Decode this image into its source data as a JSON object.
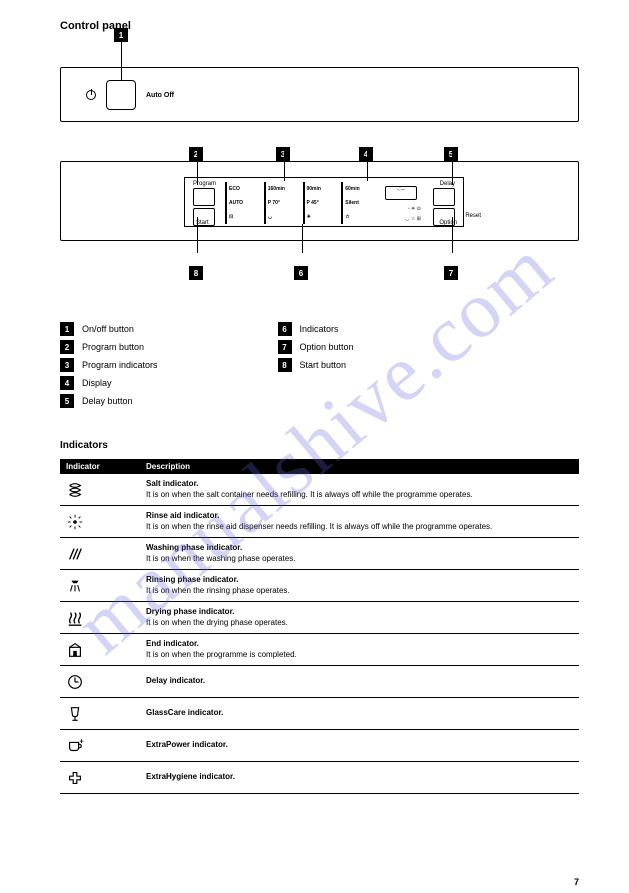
{
  "watermark": "manualshive.com",
  "page_number": "7",
  "heading": "Control panel",
  "panel1": {
    "auto_off": "Auto Off"
  },
  "markers": {
    "m1": "1",
    "m2": "2",
    "m3": "3",
    "m4": "4",
    "m5": "5",
    "m6": "6",
    "m7": "7",
    "m8": "8"
  },
  "panel2": {
    "program_lbl": "Program",
    "start_lbl": "Start",
    "delay_lbl": "Delay",
    "option_lbl": "Option",
    "reset_lbl": "Reset",
    "cells": [
      "ECO",
      "160min",
      "90min",
      "60min",
      "30min",
      "AUTO",
      "P 70°",
      "P 45°",
      "Glass",
      "Silent",
      "",
      "",
      "",
      "",
      ""
    ]
  },
  "legend_left": [
    {
      "n": "1",
      "t": "On/off button"
    },
    {
      "n": "2",
      "t": "Program button"
    },
    {
      "n": "3",
      "t": "Program indicators"
    },
    {
      "n": "4",
      "t": "Display"
    },
    {
      "n": "5",
      "t": "Delay button"
    }
  ],
  "legend_right": [
    {
      "n": "6",
      "t": "Indicators"
    },
    {
      "n": "7",
      "t": "Option button"
    },
    {
      "n": "8",
      "t": "Start button"
    }
  ],
  "indicators_title": "Indicators",
  "table_head": [
    "Indicator",
    "Description"
  ],
  "rows": [
    {
      "icon": "salt",
      "title": "Salt indicator.",
      "desc": "It is on when the salt container needs refilling. It is always off while the programme operates."
    },
    {
      "icon": "rinse",
      "title": "Rinse aid indicator.",
      "desc": "It is on when the rinse aid dispenser needs refilling. It is always off while the programme operates."
    },
    {
      "icon": "wash",
      "title": "Washing phase indicator.",
      "desc": "It is on when the washing phase operates."
    },
    {
      "icon": "rinsephase",
      "title": "Rinsing phase indicator.",
      "desc": "It is on when the rinsing phase operates."
    },
    {
      "icon": "dry",
      "title": "Drying phase indicator.",
      "desc": "It is on when the drying phase operates."
    },
    {
      "icon": "end",
      "title": "End indicator.",
      "desc": "It is on when the programme is completed."
    },
    {
      "icon": "delay",
      "title": "Delay indicator.",
      "desc": ""
    },
    {
      "icon": "glass",
      "title": "GlassCare indicator.",
      "desc": ""
    },
    {
      "icon": "extra",
      "title": "ExtraPower indicator.",
      "desc": ""
    },
    {
      "icon": "hygiene",
      "title": "ExtraHygiene indicator.",
      "desc": ""
    }
  ]
}
